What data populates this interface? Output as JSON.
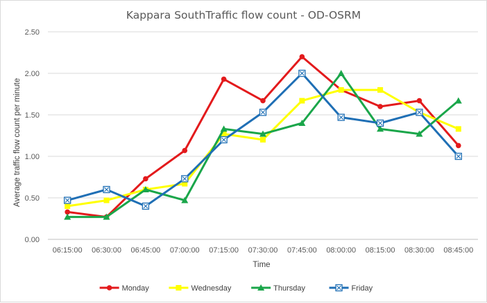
{
  "chart_data": {
    "type": "line",
    "title": "Kappara SouthTraffic flow count - OD-OSRM",
    "xlabel": "Time",
    "ylabel": "Average traffic flow count per minute",
    "categories": [
      "06:15:00",
      "06:30:00",
      "06:45:00",
      "07:00:00",
      "07:15:00",
      "07:30:00",
      "07:45:00",
      "08:00:00",
      "08:15:00",
      "08:30:00",
      "08:45:00"
    ],
    "ylim": [
      0,
      2.5
    ],
    "yticks": [
      "0.00",
      "0.50",
      "1.00",
      "1.50",
      "2.00",
      "2.50"
    ],
    "grid": true,
    "legend_position": "bottom",
    "series": [
      {
        "name": "Monday",
        "color": "#e31a1c",
        "marker": "circle",
        "values": [
          0.33,
          0.27,
          0.73,
          1.07,
          1.93,
          1.67,
          2.2,
          1.8,
          1.6,
          1.67,
          1.13
        ]
      },
      {
        "name": "Wednesday",
        "color": "#ffff00",
        "marker": "square",
        "values": [
          0.4,
          0.47,
          0.6,
          0.67,
          1.27,
          1.2,
          1.67,
          1.8,
          1.8,
          1.53,
          1.33
        ]
      },
      {
        "name": "Thursday",
        "color": "#1aa64a",
        "marker": "triangle",
        "values": [
          0.27,
          0.27,
          0.6,
          0.47,
          1.33,
          1.27,
          1.4,
          2.0,
          1.33,
          1.27,
          1.67
        ]
      },
      {
        "name": "Friday",
        "color": "#1f6fb5",
        "marker": "hatched-square",
        "values": [
          0.47,
          0.6,
          0.4,
          0.73,
          1.2,
          1.53,
          2.0,
          1.47,
          1.4,
          1.53,
          1.0
        ]
      }
    ]
  }
}
